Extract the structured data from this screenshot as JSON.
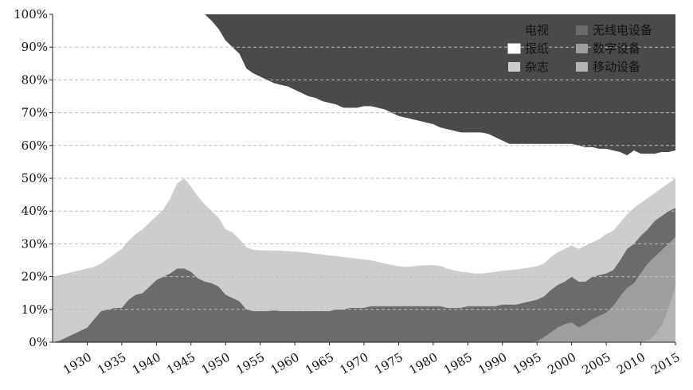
{
  "chart_data": {
    "type": "area",
    "stacked": true,
    "percent": true,
    "title": "",
    "xlabel": "",
    "ylabel": "",
    "xlim": [
      1925,
      2015
    ],
    "ylim": [
      0,
      100
    ],
    "y_ticks": [
      "0%",
      "10%",
      "20%",
      "30%",
      "40%",
      "50%",
      "60%",
      "70%",
      "80%",
      "90%",
      "100%"
    ],
    "x_ticks": [
      "1930",
      "1935",
      "1940",
      "1945",
      "1950",
      "1955",
      "1960",
      "1965",
      "1970",
      "1975",
      "1980",
      "1985",
      "1990",
      "1995",
      "2000",
      "2005",
      "2010",
      "2015"
    ],
    "grid": "horizontal dashed",
    "legend_position": "top-right",
    "legend": [
      {
        "label": "电视",
        "color": "#4a4a4a"
      },
      {
        "label": "无线电设备",
        "color": "#6b6b6b"
      },
      {
        "label": "报纸",
        "color": "#ffffff"
      },
      {
        "label": "数字设备",
        "color": "#9e9e9e"
      },
      {
        "label": "杂志",
        "color": "#cdcdcd"
      },
      {
        "label": "移动设备",
        "color": "#b3b3b3"
      }
    ],
    "boundaries": {
      "x": [
        1925,
        1926,
        1927,
        1928,
        1929,
        1930,
        1931,
        1932,
        1933,
        1934,
        1935,
        1936,
        1937,
        1938,
        1939,
        1940,
        1941,
        1942,
        1943,
        1944,
        1945,
        1946,
        1947,
        1948,
        1949,
        1950,
        1951,
        1952,
        1953,
        1954,
        1955,
        1956,
        1957,
        1958,
        1959,
        1960,
        1961,
        1962,
        1963,
        1964,
        1965,
        1966,
        1967,
        1968,
        1969,
        1970,
        1971,
        1972,
        1973,
        1974,
        1975,
        1976,
        1977,
        1978,
        1979,
        1980,
        1981,
        1982,
        1983,
        1984,
        1985,
        1986,
        1987,
        1988,
        1989,
        1990,
        1991,
        1992,
        1993,
        1994,
        1995,
        1996,
        1997,
        1998,
        1999,
        2000,
        2001,
        2002,
        2003,
        2004,
        2005,
        2006,
        2007,
        2008,
        2009,
        2010,
        2011,
        2012,
        2013,
        2014,
        2015
      ],
      "mobile_top": [
        0,
        0,
        0,
        0,
        0,
        0,
        0,
        0,
        0,
        0,
        0,
        0,
        0,
        0,
        0,
        0,
        0,
        0,
        0,
        0,
        0,
        0,
        0,
        0,
        0,
        0,
        0,
        0,
        0,
        0,
        0,
        0,
        0,
        0,
        0,
        0,
        0,
        0,
        0,
        0,
        0,
        0,
        0,
        0,
        0,
        0,
        0,
        0,
        0,
        0,
        0,
        0,
        0,
        0,
        0,
        0,
        0,
        0,
        0,
        0,
        0,
        0,
        0,
        0,
        0,
        0,
        0,
        0,
        0,
        0,
        0,
        0,
        0,
        0,
        0,
        0,
        0,
        0,
        0,
        0,
        0,
        0,
        0,
        0,
        0,
        0,
        0.5,
        2,
        5,
        10,
        17
      ],
      "digital_top": [
        0,
        0,
        0,
        0,
        0,
        0,
        0,
        0,
        0,
        0,
        0,
        0,
        0,
        0,
        0,
        0,
        0,
        0,
        0,
        0,
        0,
        0,
        0,
        0,
        0,
        0,
        0,
        0,
        0,
        0,
        0,
        0,
        0,
        0,
        0,
        0,
        0,
        0,
        0,
        0,
        0,
        0,
        0,
        0,
        0,
        0,
        0,
        0,
        0,
        0,
        0,
        0,
        0,
        0,
        0,
        0,
        0,
        0,
        0,
        0,
        0,
        0,
        0,
        0,
        0,
        0,
        0,
        0,
        0,
        0,
        0.3,
        1.5,
        3,
        4.5,
        5.5,
        6,
        4.5,
        5.5,
        7,
        8,
        9,
        11,
        14,
        16.5,
        18,
        21,
        24,
        26,
        28,
        30,
        32
      ],
      "radio_top": [
        0,
        0.5,
        1.5,
        2.5,
        3.5,
        4.5,
        7,
        9.5,
        10,
        10.5,
        10.5,
        13,
        14.5,
        15,
        17,
        19,
        20,
        21,
        22.5,
        22.5,
        21.5,
        19.5,
        18.5,
        18,
        17,
        14.5,
        13.5,
        12.5,
        10,
        9.5,
        9.5,
        9.5,
        9.7,
        9.5,
        9.5,
        9.5,
        9.5,
        9.5,
        9.5,
        9.5,
        9.5,
        10,
        10,
        10.5,
        10.5,
        10.5,
        11,
        11,
        11,
        11,
        11,
        11,
        11,
        11,
        11,
        11,
        11,
        10.5,
        10.5,
        10.5,
        11,
        11,
        11,
        11,
        11,
        11.5,
        11.5,
        11.5,
        12,
        12.5,
        13,
        14,
        16,
        17.5,
        18.5,
        20,
        18.5,
        18.5,
        20,
        20.5,
        21,
        22,
        25,
        28.5,
        30,
        32.5,
        34.5,
        37,
        38.5,
        40,
        41
      ],
      "magazine_top": [
        20,
        20.5,
        21,
        21.5,
        22,
        22.5,
        23,
        24,
        25.5,
        27,
        28.5,
        31,
        33,
        34.5,
        36.5,
        38.5,
        40.5,
        44,
        48.5,
        50,
        47.5,
        44.5,
        42,
        40,
        38,
        34.5,
        33.5,
        31.5,
        29,
        28.2,
        28.1,
        28,
        28,
        27.9,
        27.8,
        27.7,
        27.5,
        27.3,
        27,
        26.8,
        26.5,
        26.3,
        26,
        25.8,
        25.5,
        25.3,
        25,
        24.5,
        24,
        23.6,
        23.2,
        23,
        23.2,
        23.4,
        23.5,
        23.5,
        23.3,
        22.5,
        22,
        21.5,
        21.3,
        21,
        21,
        21.2,
        21.5,
        21.8,
        22,
        22.2,
        22.5,
        22.8,
        23.2,
        24,
        26,
        27.5,
        28.5,
        29.5,
        28.5,
        29.5,
        30.5,
        31.5,
        33,
        34,
        36.5,
        39,
        41,
        42.5,
        44,
        45.5,
        47,
        48.5,
        50
      ],
      "newspaper_top": [
        100,
        100,
        100,
        100,
        100,
        100,
        100,
        100,
        100,
        100,
        100,
        100,
        100,
        100,
        100,
        100,
        100,
        100,
        100,
        100,
        100,
        100,
        100,
        98,
        95.5,
        92,
        90,
        88,
        83.5,
        82,
        81,
        80,
        79,
        78.5,
        78,
        77,
        76,
        75,
        74.5,
        73.5,
        73,
        72.5,
        71.5,
        71.5,
        71.5,
        72,
        72,
        71.5,
        71,
        70,
        69,
        68.5,
        68,
        67.5,
        67,
        66.5,
        65.5,
        65,
        64.5,
        64,
        64,
        64,
        64,
        63.5,
        62.5,
        61.5,
        60.5,
        60.5,
        60.5,
        60.5,
        60.5,
        60.5,
        60.5,
        60.5,
        60.5,
        60.5,
        60,
        59.5,
        59.5,
        59,
        59,
        58.5,
        58,
        57,
        58.5,
        57.5,
        57.5,
        57.5,
        58,
        58,
        58.5
      ]
    }
  }
}
